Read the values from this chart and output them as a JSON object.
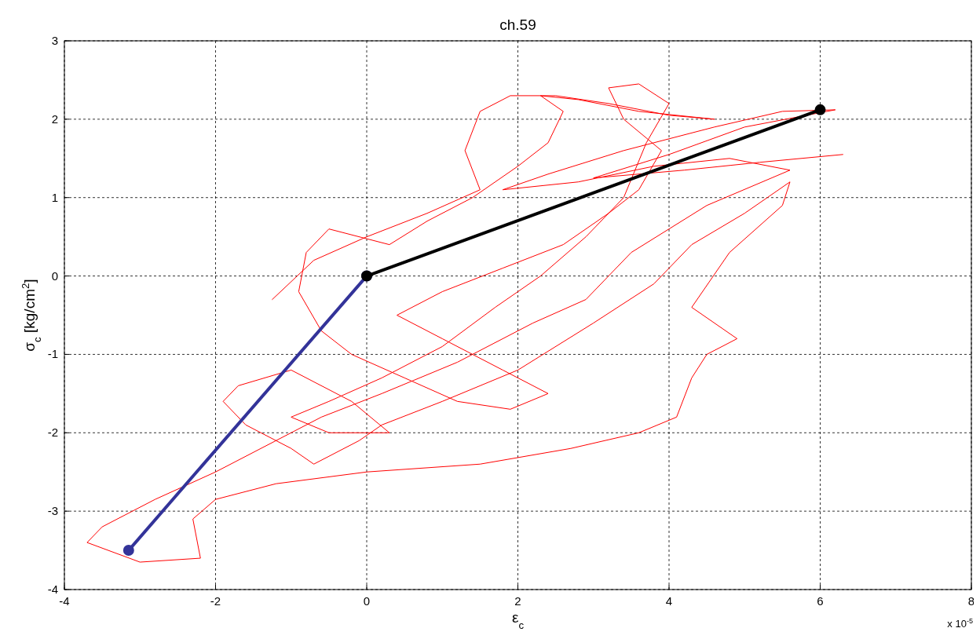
{
  "chart_data": {
    "type": "line",
    "title": "ch.59",
    "xlabel": "ε$_{c}$",
    "ylabel": "σ$_{c}$ [kg/cm$^{2}$]",
    "annotations": [
      "x 10$^{-5}$"
    ],
    "xlim": [
      -4,
      8
    ],
    "xticks": [
      -4,
      -2,
      0,
      2,
      4,
      6,
      8
    ],
    "ylim": [
      -4,
      3
    ],
    "yticks": [
      -4,
      -3,
      -2,
      -1,
      0,
      1,
      2,
      3
    ],
    "grid": true,
    "series": [
      {
        "color": "#ff0000",
        "marker": "none",
        "x": [
          -1.25,
          -0.7,
          0,
          0.8,
          1.5,
          1.3,
          1.5,
          1.9,
          2.5,
          3.2,
          4.0,
          4.6,
          3.6,
          2.8,
          2.3,
          2.6,
          2.4,
          2.0,
          1.4,
          0.8,
          0.3,
          -0.5,
          -0.8,
          -0.9,
          -0.6,
          -0.2,
          0.5,
          1.2,
          1.9,
          2.4,
          1.8,
          1.0,
          0.4,
          1.0,
          1.8,
          2.6,
          3.2,
          3.6,
          3.9,
          3.4,
          3.2,
          3.6,
          4.0,
          3.7,
          3.4,
          2.9,
          2.3,
          1.7,
          1.0,
          0.2,
          -0.5,
          -1.0,
          -0.5,
          0.3,
          -0.2,
          -1.0,
          -1.7,
          -1.9,
          -1.6,
          -1.0,
          -0.7,
          -0.1,
          0.2,
          1.0,
          2.0,
          3.0,
          3.8,
          4.3,
          5.0,
          5.6,
          5.5,
          4.8,
          4.3,
          4.9,
          4.5,
          4.3,
          4.1,
          3.6,
          2.7,
          1.5,
          0,
          -1.2,
          -2.0,
          -2.3,
          -2.2,
          -3.0,
          -3.7,
          -3.5,
          -2.8,
          -2.0,
          -1.2,
          -0.6,
          0.2,
          1.2,
          2.2,
          2.9,
          3.5,
          4.5,
          5.6,
          4.8,
          3.8,
          2.8,
          1.8,
          2.4,
          3.4,
          4.6,
          5.5,
          6.2,
          5.0,
          4.0,
          3.0,
          4.2,
          5.2,
          6.3
        ],
        "values": [
          -0.3,
          0.2,
          0.5,
          0.8,
          1.1,
          1.6,
          2.1,
          2.3,
          2.3,
          2.2,
          2.05,
          2.0,
          2.1,
          2.25,
          2.3,
          2.1,
          1.7,
          1.4,
          1.0,
          0.7,
          0.4,
          0.6,
          0.3,
          -0.2,
          -0.7,
          -1.0,
          -1.3,
          -1.6,
          -1.7,
          -1.5,
          -1.2,
          -0.8,
          -0.5,
          -0.2,
          0.1,
          0.4,
          0.8,
          1.1,
          1.6,
          2.0,
          2.4,
          2.45,
          2.2,
          1.7,
          1.0,
          0.5,
          0.0,
          -0.4,
          -0.9,
          -1.3,
          -1.6,
          -1.8,
          -2.0,
          -2.0,
          -1.6,
          -1.2,
          -1.4,
          -1.6,
          -1.9,
          -2.2,
          -2.4,
          -2.1,
          -1.9,
          -1.6,
          -1.2,
          -0.6,
          -0.1,
          0.4,
          0.8,
          1.2,
          0.9,
          0.3,
          -0.4,
          -0.8,
          -1.0,
          -1.3,
          -1.8,
          -2.0,
          -2.2,
          -2.4,
          -2.5,
          -2.65,
          -2.85,
          -3.1,
          -3.6,
          -3.65,
          -3.4,
          -3.2,
          -2.85,
          -2.5,
          -2.1,
          -1.8,
          -1.5,
          -1.1,
          -0.6,
          -0.3,
          0.3,
          0.9,
          1.35,
          1.5,
          1.4,
          1.2,
          1.1,
          1.3,
          1.6,
          1.9,
          2.1,
          2.12,
          1.9,
          1.55,
          1.25,
          1.35,
          1.45,
          1.55
        ]
      },
      {
        "color": "#333399",
        "marker": "circle",
        "x": [
          -3.15,
          0
        ],
        "values": [
          -3.5,
          0
        ]
      },
      {
        "color": "#000000",
        "marker": "circle",
        "x": [
          0,
          6
        ],
        "values": [
          0,
          2.12
        ]
      }
    ]
  }
}
